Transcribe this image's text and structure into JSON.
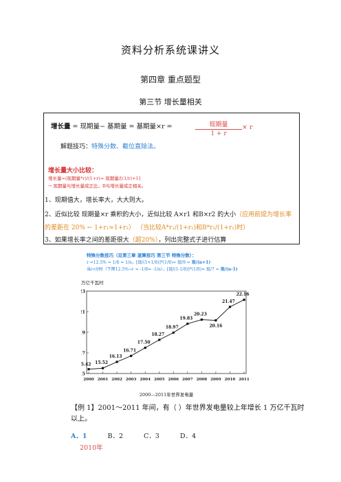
{
  "doc": {
    "title": "资料分析系统课讲义",
    "chapter": "第四章  重点题型",
    "section": "第三节   增长量相关"
  },
  "box": {
    "formula_label": "增长量",
    "formula_eq": " = 现期量− 基期量 = 基期量×r =",
    "frac_num": "现期量",
    "frac_den": "1 + r",
    "frac_after": "× r",
    "tips_prefix": "解题技巧：",
    "tips_body": "特殊分数、截位直除法。",
    "compare_title": "增长量大小比较：",
    "compare_line1": "增长量=(现期量*r)/(1+r)= 现期量/[(1/r)+1]",
    "compare_line2": "→ 现期量与增长量成正比，R与增长量成正相关。",
    "point1": "1、现期值大，增长率大，大大则大。",
    "point2_a": "2、近似比较 现期量×r 乘积的大小，近似比较 A×r1 和B×r2 的大小",
    "point2_b": "（应用前提为增长率的差距在 20% ← 1+r₁≈1+r₂）",
    "point2_c": "（当比较A*r₁/(1+r₁)和B*r₂/(1+r₂)时）",
    "point3_a": "3、如果增长率之间的差距很大",
    "point3_b": "（超20%）",
    "point3_c": "，列出完整式子进行估算"
  },
  "notes": {
    "line1": "特殊分数技巧（见第三章 速算技巧 第三节 特殊分数）：",
    "line2a": "r =12.5% = 1/8 = 1/n，[现/(1+1/8)]*(1/8)= 现/9 = ",
    "line2b": "现/(n+1)",
    "line3a": "当r<0时（下降12.5%→r = -1/8= -1/n），[现/(1-1/8)]*(1/8)= 现/7 = ",
    "line3b": "现/(n-1)"
  },
  "chart_data": {
    "type": "line",
    "ylabel": "万亿千瓦时",
    "caption": "2000—2011年世界发电量",
    "x": [
      "2000",
      "2001",
      "2002",
      "2003",
      "2004",
      "2005",
      "2006",
      "2007",
      "2008",
      "2009",
      "2010",
      "2011"
    ],
    "values": [
      15.42,
      15.52,
      16.13,
      16.71,
      17.5,
      18.27,
      18.97,
      19.83,
      20.23,
      20.16,
      21.47,
      22.16
    ],
    "labels": [
      "15.42",
      "15.52",
      "16.13",
      "16.71",
      "17.50",
      "18.27",
      "18.97",
      "19.83",
      "20.23",
      "20.16",
      "21.47",
      "22.16"
    ],
    "yticks": [
      "15",
      "17",
      "19",
      "21",
      "23"
    ],
    "ylim": [
      15,
      23
    ],
    "grid": false,
    "line_color": "#222222"
  },
  "example": {
    "line1": "【例 1】2001～2011 年间，有（  ）年世界发电量较上年增长 1 万亿千瓦时",
    "line2": "以上。",
    "options": [
      "A．1",
      "B．2",
      "C．3",
      "D．4"
    ],
    "year_note": "2010年"
  }
}
